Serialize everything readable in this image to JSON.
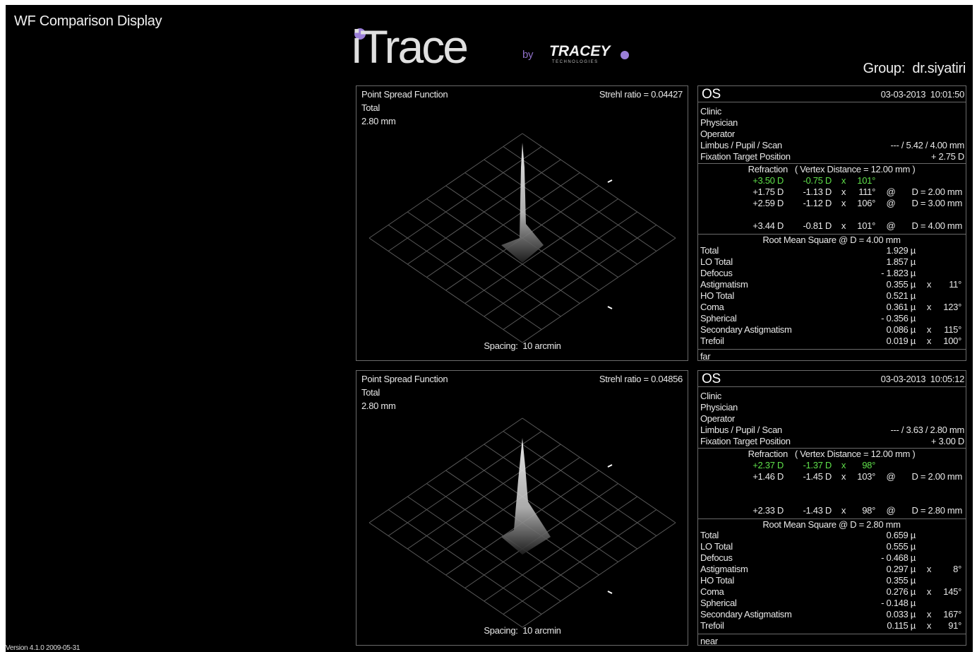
{
  "title": "WF Comparison Display",
  "logo": {
    "brand": "iTrace",
    "by": "by",
    "company": "TRACEY",
    "company_sub": "TECHNOLOGIES"
  },
  "group": "Group:  dr.siyatiri",
  "version": "Version 4.1.0 2009-05-31",
  "highlight_color": "#5fe04a",
  "exams": [
    {
      "psf": {
        "title": "Point Spread Function",
        "mode": "Total",
        "pupil": "2.80 mm",
        "strehl": "Strehl ratio = 0.04427",
        "spacing": "Spacing:  10 arcmin"
      },
      "eye": "OS",
      "datetime": "03-03-2013  10:01:50",
      "fields": [
        {
          "label": "Clinic"
        },
        {
          "label": "Physician"
        },
        {
          "label": "Operator"
        },
        {
          "label": "Limbus / Pupil / Scan",
          "value": "--- / 5.42 / 4.00 mm"
        },
        {
          "label": "Fixation Target Position",
          "value": "+ 2.75 D"
        }
      ],
      "refraction": {
        "header": "Refraction   ( Vertex Distance = 12.00 mm )",
        "current": [
          "+3.50 D",
          "-0.75 D",
          "x",
          "101°"
        ],
        "rows": [
          [
            "+1.75 D",
            "-1.13 D",
            "x",
            "111°",
            "@",
            "D = 2.00 mm"
          ],
          [
            "+2.59 D",
            "-1.12 D",
            "x",
            "106°",
            "@",
            "D = 3.00 mm"
          ],
          [
            "+3.44 D",
            "-0.81 D",
            "x",
            "101°",
            "@",
            "D = 4.00 mm"
          ]
        ]
      },
      "rms": {
        "header": "Root Mean Square @ D = 4.00 mm",
        "rows": [
          [
            "Total",
            "1.929 µ"
          ],
          [
            "LO Total",
            "1.857 µ"
          ],
          [
            "Defocus",
            "- 1.823 µ"
          ],
          [
            "Astigmatism",
            "0.355 µ",
            "x",
            "11°"
          ],
          [
            "HO Total",
            "0.521 µ"
          ],
          [
            "Coma",
            "0.361 µ",
            "x",
            "123°"
          ],
          [
            "Spherical",
            "- 0.356 µ"
          ],
          [
            "Secondary Astigmatism",
            "0.086 µ",
            "x",
            "115°"
          ],
          [
            "Trefoil",
            "0.019 µ",
            "x",
            "100°"
          ]
        ]
      },
      "footer": "far"
    },
    {
      "psf": {
        "title": "Point Spread Function",
        "mode": "Total",
        "pupil": "2.80 mm",
        "strehl": "Strehl ratio = 0.04856",
        "spacing": "Spacing:  10 arcmin"
      },
      "eye": "OS",
      "datetime": "03-03-2013  10:05:12",
      "fields": [
        {
          "label": "Clinic"
        },
        {
          "label": "Physician"
        },
        {
          "label": "Operator"
        },
        {
          "label": "Limbus / Pupil / Scan",
          "value": "--- / 3.63 / 2.80 mm"
        },
        {
          "label": "Fixation Target Position",
          "value": "+ 3.00 D"
        }
      ],
      "refraction": {
        "header": "Refraction   ( Vertex Distance = 12.00 mm )",
        "current": [
          "+2.37 D",
          "-1.37 D",
          "x",
          "98°"
        ],
        "rows": [
          [
            "+1.46 D",
            "-1.45 D",
            "x",
            "103°",
            "@",
            "D = 2.00 mm"
          ],
          [
            "+2.33 D",
            "-1.43 D",
            "x",
            "98°",
            "@",
            "D = 2.80 mm"
          ]
        ]
      },
      "rms": {
        "header": "Root Mean Square @ D = 2.80 mm",
        "rows": [
          [
            "Total",
            "0.659 µ"
          ],
          [
            "LO Total",
            "0.555 µ"
          ],
          [
            "Defocus",
            "- 0.468 µ"
          ],
          [
            "Astigmatism",
            "0.297 µ",
            "x",
            "8°"
          ],
          [
            "HO Total",
            "0.355 µ"
          ],
          [
            "Coma",
            "0.276 µ",
            "x",
            "145°"
          ],
          [
            "Spherical",
            "- 0.148 µ"
          ],
          [
            "Secondary Astigmatism",
            "0.033 µ",
            "x",
            "167°"
          ],
          [
            "Trefoil",
            "0.115 µ",
            "x",
            "91°"
          ]
        ]
      },
      "footer": "near"
    }
  ]
}
